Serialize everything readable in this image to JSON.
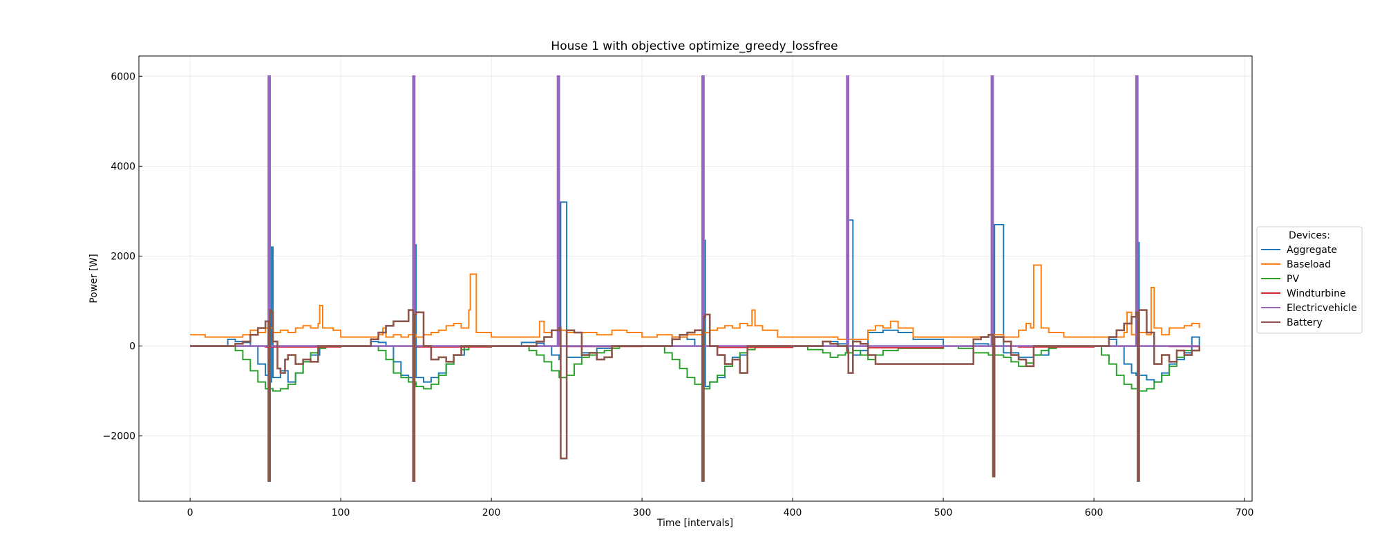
{
  "chart_data": {
    "type": "line",
    "title": "House 1 with objective optimize_greedy_lossfree",
    "xlabel": "Time [intervals]",
    "ylabel": "Power [W]",
    "xlim": [
      -34,
      705
    ],
    "ylim": [
      -3450,
      6450
    ],
    "xticks": [
      0,
      100,
      200,
      300,
      400,
      500,
      600,
      700
    ],
    "yticks": [
      -2000,
      0,
      2000,
      4000,
      6000
    ],
    "ytick_labels": [
      "−2000",
      "0",
      "2000",
      "4000",
      "6000"
    ],
    "grid": true,
    "legend": {
      "title": "Devices:",
      "placement": "center-right-outside"
    },
    "series": [
      {
        "name": "Aggregate",
        "color": "#1f77b4",
        "x": [
          0,
          25,
          30,
          35,
          40,
          45,
          50,
          53,
          54,
          55,
          60,
          65,
          70,
          75,
          80,
          86,
          90,
          100,
          120,
          125,
          130,
          135,
          140,
          145,
          148,
          149,
          150,
          155,
          160,
          165,
          170,
          175,
          182,
          190,
          220,
          230,
          235,
          240,
          245,
          246,
          250,
          260,
          270,
          280,
          300,
          320,
          330,
          335,
          340,
          341,
          342,
          345,
          350,
          355,
          360,
          365,
          370,
          380,
          420,
          430,
          436,
          437,
          440,
          445,
          450,
          460,
          470,
          480,
          500,
          520,
          530,
          533,
          534,
          540,
          550,
          560,
          570,
          600,
          610,
          615,
          620,
          625,
          628,
          629,
          630,
          635,
          640,
          645,
          650,
          655,
          660,
          665,
          670
        ],
        "y": [
          0,
          150,
          100,
          80,
          0,
          -400,
          -650,
          -800,
          2200,
          -700,
          -550,
          -800,
          -600,
          -350,
          -200,
          0,
          0,
          0,
          100,
          80,
          0,
          -350,
          -650,
          -700,
          -650,
          2250,
          -700,
          -800,
          -700,
          -600,
          -400,
          -200,
          0,
          0,
          80,
          60,
          0,
          -200,
          -300,
          3200,
          -250,
          -150,
          -50,
          0,
          0,
          200,
          150,
          0,
          -600,
          2350,
          -900,
          -800,
          -700,
          -450,
          -250,
          -200,
          0,
          0,
          100,
          50,
          -150,
          2800,
          -200,
          -100,
          300,
          350,
          300,
          150,
          0,
          50,
          0,
          -100,
          2700,
          -150,
          -250,
          -200,
          0,
          0,
          150,
          0,
          -400,
          -600,
          -650,
          2300,
          -650,
          -750,
          -800,
          -600,
          -400,
          -300,
          -150,
          200,
          0
        ]
      },
      {
        "name": "Baseload",
        "color": "#ff7f0e",
        "x": [
          0,
          10,
          20,
          30,
          35,
          40,
          45,
          50,
          55,
          60,
          65,
          70,
          75,
          80,
          85,
          86,
          88,
          95,
          100,
          110,
          120,
          125,
          128,
          130,
          135,
          140,
          145,
          150,
          155,
          160,
          165,
          170,
          175,
          180,
          185,
          186,
          190,
          200,
          220,
          230,
          232,
          235,
          240,
          250,
          260,
          270,
          280,
          290,
          300,
          310,
          320,
          330,
          340,
          345,
          350,
          355,
          360,
          365,
          370,
          373,
          375,
          380,
          390,
          400,
          410,
          420,
          430,
          440,
          450,
          455,
          460,
          465,
          470,
          480,
          490,
          500,
          510,
          520,
          530,
          540,
          550,
          555,
          558,
          560,
          565,
          570,
          580,
          590,
          600,
          610,
          620,
          622,
          625,
          630,
          635,
          638,
          640,
          645,
          650,
          660,
          665,
          670
        ],
        "y": [
          250,
          200,
          200,
          200,
          250,
          350,
          300,
          400,
          300,
          350,
          300,
          400,
          450,
          400,
          500,
          900,
          400,
          350,
          200,
          200,
          200,
          250,
          400,
          200,
          250,
          200,
          250,
          200,
          250,
          300,
          350,
          450,
          500,
          400,
          800,
          1600,
          300,
          200,
          200,
          200,
          550,
          300,
          350,
          300,
          300,
          250,
          350,
          300,
          200,
          250,
          200,
          250,
          300,
          350,
          400,
          450,
          400,
          500,
          450,
          800,
          450,
          350,
          200,
          200,
          200,
          200,
          150,
          150,
          350,
          450,
          400,
          550,
          400,
          200,
          200,
          200,
          200,
          200,
          250,
          200,
          350,
          500,
          400,
          1800,
          400,
          300,
          200,
          200,
          200,
          200,
          300,
          750,
          250,
          300,
          250,
          1300,
          400,
          250,
          400,
          450,
          500,
          400
        ]
      },
      {
        "name": "PV",
        "color": "#2ca02c",
        "x": [
          0,
          25,
          30,
          35,
          40,
          45,
          50,
          55,
          60,
          65,
          70,
          75,
          80,
          85,
          90,
          120,
          125,
          130,
          135,
          140,
          145,
          150,
          155,
          160,
          165,
          170,
          175,
          180,
          185,
          220,
          225,
          230,
          235,
          240,
          245,
          250,
          255,
          260,
          265,
          270,
          275,
          280,
          285,
          310,
          315,
          320,
          325,
          330,
          335,
          340,
          345,
          350,
          355,
          360,
          365,
          370,
          375,
          400,
          410,
          420,
          425,
          430,
          435,
          440,
          445,
          450,
          455,
          460,
          470,
          500,
          510,
          520,
          530,
          540,
          545,
          550,
          555,
          560,
          565,
          570,
          575,
          600,
          605,
          610,
          615,
          620,
          625,
          630,
          635,
          640,
          645,
          650,
          655,
          660,
          670
        ],
        "y": [
          0,
          0,
          -100,
          -300,
          -550,
          -800,
          -950,
          -1000,
          -950,
          -850,
          -600,
          -350,
          -150,
          -50,
          0,
          0,
          -100,
          -300,
          -600,
          -700,
          -800,
          -900,
          -950,
          -850,
          -650,
          -400,
          -200,
          -80,
          0,
          0,
          -100,
          -200,
          -350,
          -550,
          -700,
          -650,
          -400,
          -250,
          -200,
          -150,
          -100,
          -50,
          0,
          0,
          -150,
          -300,
          -500,
          -700,
          -850,
          -950,
          -800,
          -650,
          -450,
          -300,
          -150,
          -80,
          0,
          0,
          -80,
          -150,
          -250,
          -200,
          -150,
          -100,
          -200,
          -300,
          -200,
          -100,
          -50,
          0,
          -50,
          -150,
          -200,
          -250,
          -350,
          -450,
          -380,
          -200,
          -100,
          -50,
          0,
          0,
          -200,
          -400,
          -650,
          -850,
          -950,
          -1000,
          -950,
          -800,
          -650,
          -450,
          -250,
          -100,
          0
        ]
      },
      {
        "name": "Windturbine",
        "color": "#d62728",
        "x": [
          0,
          50,
          100,
          150,
          200,
          250,
          300,
          350,
          400,
          450,
          500,
          550,
          600,
          650,
          670
        ],
        "y": [
          0,
          -20,
          0,
          -20,
          0,
          -10,
          0,
          -30,
          0,
          -40,
          0,
          -20,
          0,
          -10,
          0
        ]
      },
      {
        "name": "Electricvehicle",
        "color": "#9467bd",
        "x": [
          0,
          52,
          52.01,
          53,
          53.01,
          148,
          148.01,
          149,
          149.01,
          244,
          244.01,
          245,
          245.01,
          340,
          340.01,
          341,
          341.01,
          436,
          436.01,
          437,
          437.01,
          532,
          532.01,
          533,
          533.01,
          628,
          628.01,
          629,
          629.01,
          670
        ],
        "y": [
          0,
          0,
          6000,
          6000,
          0,
          0,
          6000,
          6000,
          0,
          0,
          6000,
          6000,
          0,
          0,
          6000,
          6000,
          0,
          0,
          6000,
          6000,
          0,
          0,
          6000,
          6000,
          0,
          0,
          6000,
          6000,
          0,
          0
        ]
      },
      {
        "name": "Battery",
        "color": "#8c564b",
        "x": [
          0,
          30,
          35,
          40,
          45,
          50,
          52,
          53,
          54,
          55,
          58,
          60,
          63,
          65,
          70,
          75,
          80,
          85,
          90,
          120,
          125,
          130,
          135,
          145,
          148,
          149,
          150,
          155,
          160,
          165,
          170,
          175,
          180,
          185,
          230,
          235,
          240,
          245,
          246,
          250,
          255,
          260,
          265,
          270,
          275,
          280,
          320,
          325,
          330,
          335,
          340,
          341,
          342,
          345,
          350,
          355,
          360,
          365,
          370,
          420,
          425,
          430,
          436,
          437,
          440,
          445,
          450,
          455,
          520,
          525,
          530,
          533,
          534,
          540,
          545,
          550,
          555,
          560,
          610,
          615,
          620,
          625,
          628,
          629,
          630,
          635,
          640,
          645,
          650,
          655,
          660,
          665,
          670
        ],
        "y": [
          0,
          50,
          100,
          250,
          400,
          550,
          -3000,
          800,
          750,
          100,
          -500,
          -600,
          -300,
          -200,
          -400,
          -300,
          -350,
          0,
          0,
          150,
          300,
          450,
          550,
          800,
          -3000,
          700,
          750,
          0,
          -300,
          -250,
          -350,
          -200,
          0,
          0,
          100,
          200,
          350,
          400,
          -2500,
          350,
          300,
          -200,
          -150,
          -300,
          -250,
          0,
          150,
          250,
          300,
          350,
          -3000,
          650,
          700,
          0,
          -200,
          -400,
          -300,
          -600,
          0,
          100,
          50,
          0,
          -100,
          -600,
          100,
          50,
          -200,
          -400,
          150,
          200,
          250,
          -2900,
          200,
          100,
          -200,
          -300,
          -450,
          0,
          200,
          350,
          500,
          650,
          750,
          -3000,
          800,
          300,
          -400,
          -200,
          -350,
          -100,
          -200,
          -100,
          0
        ]
      }
    ]
  }
}
